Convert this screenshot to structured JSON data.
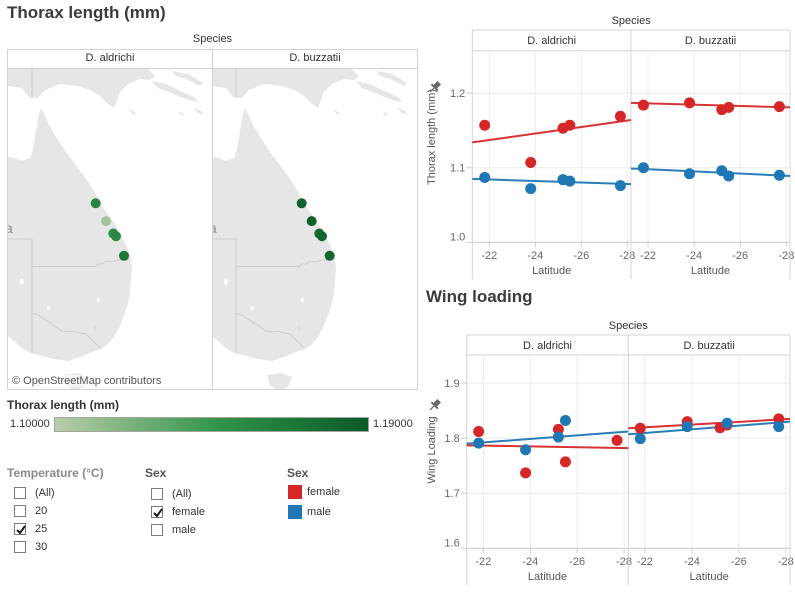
{
  "dashboard": {
    "map_title": "Thorax length (mm)"
  },
  "map": {
    "facet_label": "Species",
    "panels": [
      {
        "species": "D. aldrichi",
        "points": [
          {
            "latitude": -21.8,
            "thorax_length": 1.157
          },
          {
            "latitude": -23.8,
            "thorax_length": 1.107
          },
          {
            "latitude": -25.2,
            "thorax_length": 1.153
          },
          {
            "latitude": -25.5,
            "thorax_length": 1.157
          },
          {
            "latitude": -27.7,
            "thorax_length": 1.169
          }
        ]
      },
      {
        "species": "D. buzzatii",
        "points": [
          {
            "latitude": -21.8,
            "thorax_length": 1.184
          },
          {
            "latitude": -23.8,
            "thorax_length": 1.187
          },
          {
            "latitude": -25.2,
            "thorax_length": 1.178
          },
          {
            "latitude": -25.5,
            "thorax_length": 1.181
          },
          {
            "latitude": -27.7,
            "thorax_length": 1.182
          }
        ]
      }
    ],
    "label_fragment": "a",
    "attribution": "© OpenStreetMap contributors",
    "land_color": "#e6e6e6",
    "border_color": "#c6c6c6"
  },
  "color_legend": {
    "title": "Thorax length (mm)",
    "min_label": "1.10000",
    "max_label": "1.19000",
    "min": 1.1,
    "max": 1.19,
    "colors": [
      "#b9cdaa",
      "#31944a",
      "#0b5a27"
    ]
  },
  "filters": {
    "temperature": {
      "title": "Temperature (°C)",
      "options": [
        {
          "label": "(All)",
          "checked": false
        },
        {
          "label": "20",
          "checked": false
        },
        {
          "label": "25",
          "checked": true
        },
        {
          "label": "30",
          "checked": false
        }
      ]
    },
    "sex": {
      "title": "Sex",
      "options": [
        {
          "label": "(All)",
          "checked": false
        },
        {
          "label": "female",
          "checked": true
        },
        {
          "label": "male",
          "checked": false
        }
      ]
    }
  },
  "sex_legend": {
    "title": "Sex",
    "items": [
      {
        "label": "female",
        "color": "#d62728"
      },
      {
        "label": "male",
        "color": "#1f77b4"
      }
    ]
  },
  "chart_data": [
    {
      "type": "scatter",
      "facet_label": "Species",
      "facets": [
        "D. aldrichi",
        "D. buzzatii"
      ],
      "xlabel": "Latitude",
      "ylabel": "Thorax length (mm)",
      "xlim": [
        -21.26,
        -28.16
      ],
      "ylim": [
        1.0,
        1.257
      ],
      "xticks": [
        -22,
        -24,
        -26,
        -28
      ],
      "xtick_labels": [
        "-22",
        "-24",
        "-26",
        "-28"
      ],
      "yticks": [
        1.0,
        1.1,
        1.2
      ],
      "ytick_labels": [
        "1.0",
        "1.1",
        "1.2"
      ],
      "grid": true,
      "series": [
        {
          "name": "female",
          "color": "#d62728",
          "panels": [
            {
              "facet": "D. aldrichi",
              "points": [
                [
                  -21.8,
                  1.157
                ],
                [
                  -23.8,
                  1.107
                ],
                [
                  -25.2,
                  1.153
                ],
                [
                  -25.5,
                  1.157
                ],
                [
                  -27.7,
                  1.169
                ]
              ],
              "trend": {
                "start": [
                  -21.26,
                  1.134
                ],
                "end": [
                  -28.16,
                  1.164
                ]
              }
            },
            {
              "facet": "D. buzzatii",
              "points": [
                [
                  -21.8,
                  1.184
                ],
                [
                  -23.8,
                  1.187
                ],
                [
                  -25.2,
                  1.178
                ],
                [
                  -25.5,
                  1.181
                ],
                [
                  -27.7,
                  1.182
                ]
              ],
              "trend": {
                "start": [
                  -21.26,
                  1.187
                ],
                "end": [
                  -28.16,
                  1.181
                ]
              }
            }
          ]
        },
        {
          "name": "male",
          "color": "#1f77b4",
          "panels": [
            {
              "facet": "D. aldrichi",
              "points": [
                [
                  -21.8,
                  1.087
                ],
                [
                  -23.8,
                  1.072
                ],
                [
                  -25.2,
                  1.084
                ],
                [
                  -25.5,
                  1.082
                ],
                [
                  -27.7,
                  1.076
                ]
              ],
              "trend": {
                "start": [
                  -21.26,
                  1.085
                ],
                "end": [
                  -28.16,
                  1.078
                ]
              }
            },
            {
              "facet": "D. buzzatii",
              "points": [
                [
                  -21.8,
                  1.1
                ],
                [
                  -23.8,
                  1.092
                ],
                [
                  -25.2,
                  1.096
                ],
                [
                  -25.5,
                  1.089
                ],
                [
                  -27.7,
                  1.09
                ]
              ],
              "trend": {
                "start": [
                  -21.26,
                  1.099
                ],
                "end": [
                  -28.16,
                  1.089
                ]
              }
            }
          ]
        }
      ]
    },
    {
      "type": "scatter",
      "title": "Wing loading",
      "facet_label": "Species",
      "facets": [
        "D. aldrichi",
        "D. buzzatii"
      ],
      "xlabel": "Latitude",
      "ylabel": "Wing Loading",
      "xlim": [
        -21.29,
        -28.18
      ],
      "ylim": [
        1.6,
        1.951
      ],
      "xticks": [
        -22,
        -24,
        -26,
        -28
      ],
      "xtick_labels": [
        "-22",
        "-24",
        "-26",
        "-28"
      ],
      "yticks": [
        1.6,
        1.7,
        1.8,
        1.9
      ],
      "ytick_labels": [
        "1.6",
        "1.7",
        "1.8",
        "1.9"
      ],
      "grid": true,
      "series": [
        {
          "name": "female",
          "color": "#d62728",
          "panels": [
            {
              "facet": "D. aldrichi",
              "points": [
                [
                  -21.8,
                  1.812
                ],
                [
                  -23.8,
                  1.737
                ],
                [
                  -25.2,
                  1.816
                ],
                [
                  -25.5,
                  1.757
                ],
                [
                  -27.7,
                  1.796
                ]
              ],
              "trend": {
                "start": [
                  -21.29,
                  1.787
                ],
                "end": [
                  -28.18,
                  1.782
                ]
              }
            },
            {
              "facet": "D. buzzatii",
              "points": [
                [
                  -21.8,
                  1.818
                ],
                [
                  -23.8,
                  1.83
                ],
                [
                  -25.2,
                  1.819
                ],
                [
                  -25.5,
                  1.824
                ],
                [
                  -27.7,
                  1.835
                ]
              ],
              "trend": {
                "start": [
                  -21.29,
                  1.818
                ],
                "end": [
                  -28.18,
                  1.835
                ]
              }
            }
          ]
        },
        {
          "name": "male",
          "color": "#1f77b4",
          "panels": [
            {
              "facet": "D. aldrichi",
              "points": [
                [
                  -21.8,
                  1.791
                ],
                [
                  -23.8,
                  1.779
                ],
                [
                  -25.2,
                  1.802
                ],
                [
                  -25.5,
                  1.832
                ]
              ],
              "trend": {
                "start": [
                  -21.29,
                  1.79
                ],
                "end": [
                  -28.18,
                  1.812
                ]
              }
            },
            {
              "facet": "D. buzzatii",
              "points": [
                [
                  -21.8,
                  1.799
                ],
                [
                  -23.8,
                  1.821
                ],
                [
                  -25.5,
                  1.827
                ],
                [
                  -27.7,
                  1.821
                ]
              ],
              "trend": {
                "start": [
                  -21.29,
                  1.807
                ],
                "end": [
                  -28.18,
                  1.83
                ]
              }
            }
          ]
        }
      ]
    }
  ]
}
